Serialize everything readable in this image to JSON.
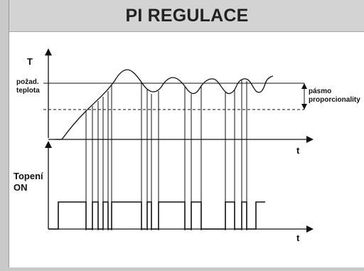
{
  "title": "PI REGULACE",
  "labels": {
    "temp_axis": "T",
    "setpoint_line1": "požad.",
    "setpoint_line2": "teplota",
    "time_axis_top": "t",
    "time_axis_bottom": "t",
    "heating_line1": "Topení",
    "heating_line2": "ON",
    "band_line1": "pásmo",
    "band_line2": "proporcionality"
  },
  "colors": {
    "line": "#111111",
    "panel": "#ffffff",
    "frame": "#c9c9c9"
  }
}
